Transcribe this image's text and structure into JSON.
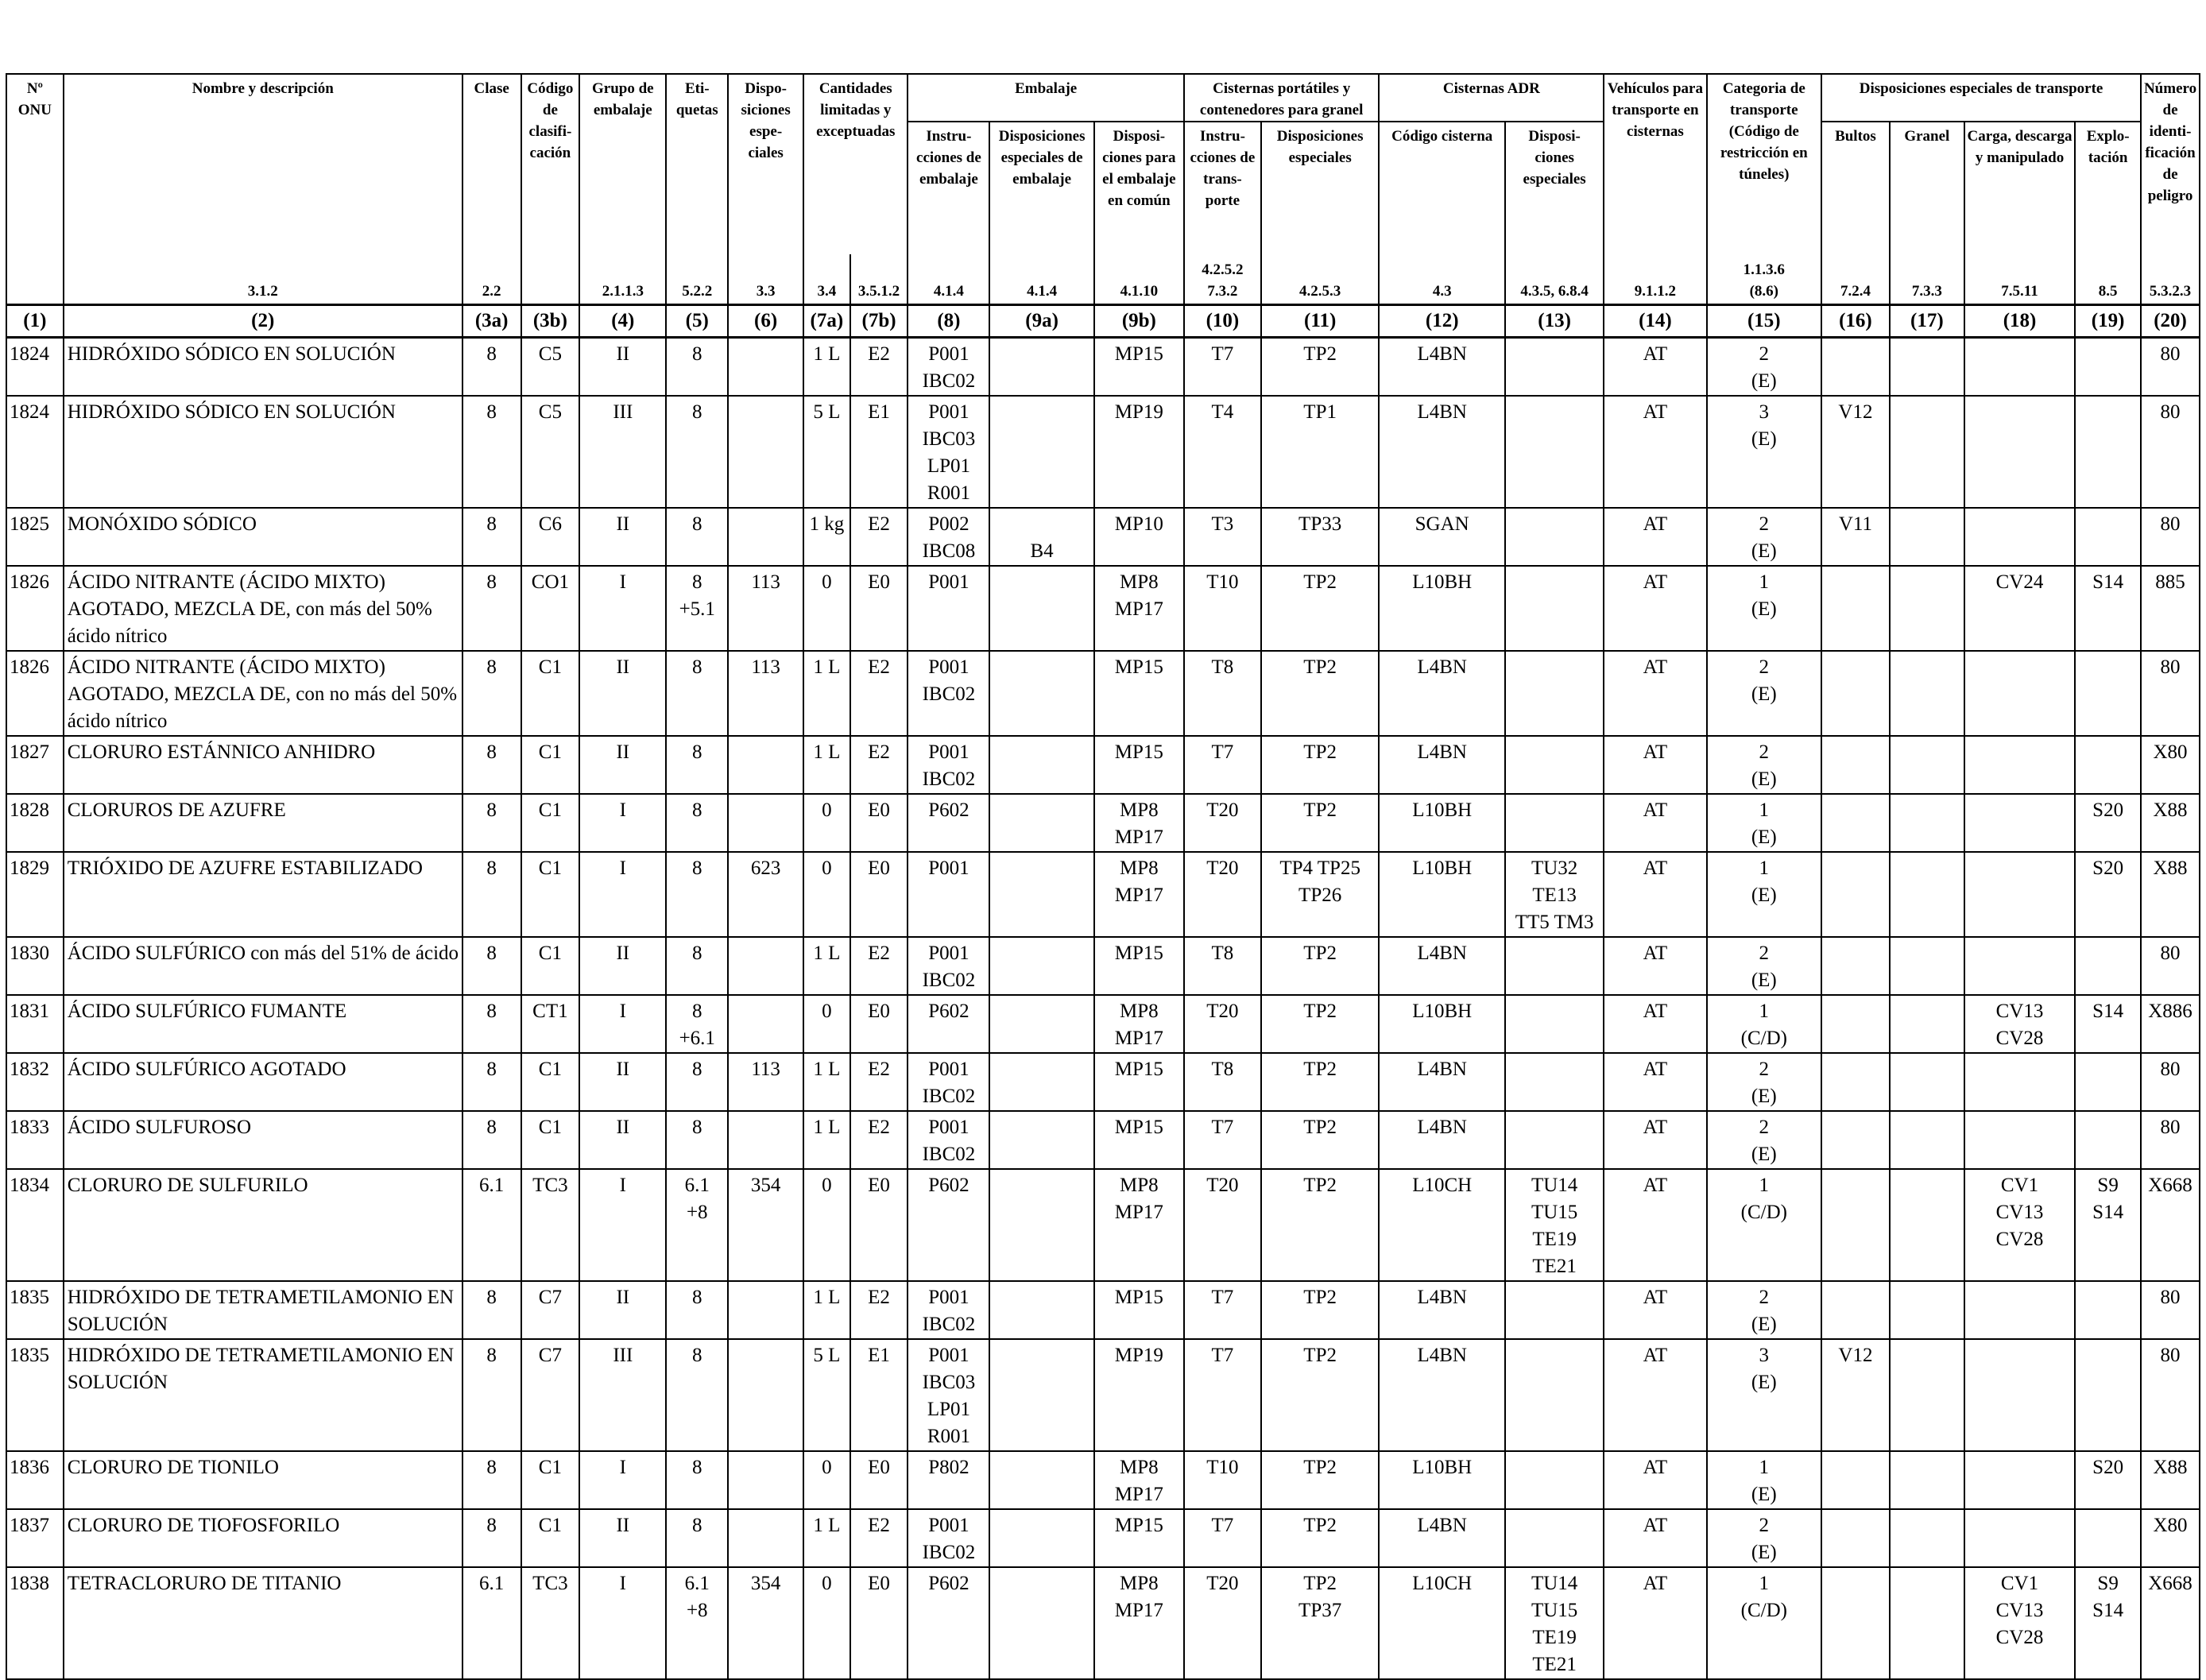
{
  "header": {
    "onu": "Nº ONU",
    "name": "Nombre y descripción",
    "clase": "Clase",
    "codigo": "Código de clasifi- cación",
    "grupo": "Grupo de embalaje",
    "etiquetas": "Eti- quetas",
    "disp_especiales": "Dispo- siciones espe- ciales",
    "cantidades": "Cantidades limitadas y exceptuadas",
    "embalaje": "Embalaje",
    "instr_embalaje": "Instru- cciones de embalaje",
    "disp_esp_embalaje": "Disposiciones especiales de embalaje",
    "disp_embalaje_comun": "Disposi- ciones para el embalaje en común",
    "cisternas_port": "Cisternas portátiles y contenedores para granel",
    "instr_transporte": "Instru- cciones de trans- porte",
    "disp_esp_cisternas": "Disposiciones especiales",
    "cisternas_adr": "Cisternas ADR",
    "codigo_cisterna": "Código cisterna",
    "disp_esp_adr": "Disposi- ciones especiales",
    "vehiculos": "Vehículos para transporte en cisternas",
    "categoria": "Categoria de transporte (Código de restricción en túneles)",
    "disp_esp_transporte": "Disposiciones especiales de transporte",
    "bultos": "Bultos",
    "granel": "Granel",
    "carga": "Carga, descarga y manipulado",
    "explotacion": "Explo- tación",
    "numero_peligro": "Número de identi- ficación de peligro"
  },
  "refs": [
    "",
    "3.1.2",
    "2.2",
    "",
    "2.1.1.3",
    "5.2.2",
    "3.3",
    "3.4",
    "3.5.1.2",
    "4.1.4",
    "4.1.4",
    "4.1.10",
    "4.2.5.2\n7.3.2",
    "4.2.5.3",
    "4.3",
    "4.3.5, 6.8.4",
    "9.1.1.2",
    "1.1.3.6\n(8.6)",
    "7.2.4",
    "7.3.3",
    "7.5.11",
    "8.5",
    "5.3.2.3"
  ],
  "colnums": [
    "(1)",
    "(2)",
    "(3a)",
    "(3b)",
    "(4)",
    "(5)",
    "(6)",
    "(7a)",
    "(7b)",
    "(8)",
    "(9a)",
    "(9b)",
    "(10)",
    "(11)",
    "(12)",
    "(13)",
    "(14)",
    "(15)",
    "(16)",
    "(17)",
    "(18)",
    "(19)",
    "(20)"
  ],
  "rows": [
    [
      "1824",
      "HIDRÓXIDO SÓDICO EN SOLUCIÓN",
      "8",
      "C5",
      "II",
      "8",
      "",
      "1 L",
      "E2",
      "P001\nIBC02",
      "",
      "MP15",
      "T7",
      "TP2",
      "L4BN",
      "",
      "AT",
      "2\n(E)",
      "",
      "",
      "",
      "",
      "80"
    ],
    [
      "1824",
      "HIDRÓXIDO SÓDICO EN SOLUCIÓN",
      "8",
      "C5",
      "III",
      "8",
      "",
      "5 L",
      "E1",
      "P001\nIBC03\nLP01\nR001",
      "",
      "MP19",
      "T4",
      "TP1",
      "L4BN",
      "",
      "AT",
      "3\n(E)",
      "V12",
      "",
      "",
      "",
      "80"
    ],
    [
      "1825",
      "MONÓXIDO SÓDICO",
      "8",
      "C6",
      "II",
      "8",
      "",
      "1 kg",
      "E2",
      "P002\nIBC08",
      "\nB4",
      "MP10",
      "T3",
      "TP33",
      "SGAN",
      "",
      "AT",
      "2\n(E)",
      "V11",
      "",
      "",
      "",
      "80"
    ],
    [
      "1826",
      "ÁCIDO NITRANTE (ÁCIDO MIXTO) AGOTADO, MEZCLA DE, con más del 50% ácido nítrico",
      "8",
      "CO1",
      "I",
      "8\n+5.1",
      "113",
      "0",
      "E0",
      "P001",
      "",
      "MP8\nMP17",
      "T10",
      "TP2",
      "L10BH",
      "",
      "AT",
      "1\n(E)",
      "",
      "",
      "CV24",
      "S14",
      "885"
    ],
    [
      "1826",
      "ÁCIDO NITRANTE (ÁCIDO MIXTO) AGOTADO, MEZCLA DE, con no más del 50% ácido nítrico",
      "8",
      "C1",
      "II",
      "8",
      "113",
      "1 L",
      "E2",
      "P001\nIBC02",
      "",
      "MP15",
      "T8",
      "TP2",
      "L4BN",
      "",
      "AT",
      "2\n(E)",
      "",
      "",
      "",
      "",
      "80"
    ],
    [
      "1827",
      "CLORURO ESTÁNNICO ANHIDRO",
      "8",
      "C1",
      "II",
      "8",
      "",
      "1 L",
      "E2",
      "P001\nIBC02",
      "",
      "MP15",
      "T7",
      "TP2",
      "L4BN",
      "",
      "AT",
      "2\n(E)",
      "",
      "",
      "",
      "",
      "X80"
    ],
    [
      "1828",
      "CLORUROS DE AZUFRE",
      "8",
      "C1",
      "I",
      "8",
      "",
      "0",
      "E0",
      "P602",
      "",
      "MP8\nMP17",
      "T20",
      "TP2",
      "L10BH",
      "",
      "AT",
      "1\n(E)",
      "",
      "",
      "",
      "S20",
      "X88"
    ],
    [
      "1829",
      "TRIÓXIDO DE AZUFRE ESTABILIZADO",
      "8",
      "C1",
      "I",
      "8",
      "623",
      "0",
      "E0",
      "P001",
      "",
      "MP8\nMP17",
      "T20",
      "TP4 TP25\nTP26",
      "L10BH",
      "TU32\nTE13\nTT5 TM3",
      "AT",
      "1\n(E)",
      "",
      "",
      "",
      "S20",
      "X88"
    ],
    [
      "1830",
      "ÁCIDO SULFÚRICO con más del 51% de ácido",
      "8",
      "C1",
      "II",
      "8",
      "",
      "1 L",
      "E2",
      "P001\nIBC02",
      "",
      "MP15",
      "T8",
      "TP2",
      "L4BN",
      "",
      "AT",
      "2\n(E)",
      "",
      "",
      "",
      "",
      "80"
    ],
    [
      "1831",
      "ÁCIDO SULFÚRICO FUMANTE",
      "8",
      "CT1",
      "I",
      "8\n+6.1",
      "",
      "0",
      "E0",
      "P602",
      "",
      "MP8\nMP17",
      "T20",
      "TP2",
      "L10BH",
      "",
      "AT",
      "1\n(C/D)",
      "",
      "",
      "CV13\nCV28",
      "S14",
      "X886"
    ],
    [
      "1832",
      "ÁCIDO SULFÚRICO AGOTADO",
      "8",
      "C1",
      "II",
      "8",
      "113",
      "1 L",
      "E2",
      "P001\nIBC02",
      "",
      "MP15",
      "T8",
      "TP2",
      "L4BN",
      "",
      "AT",
      "2\n(E)",
      "",
      "",
      "",
      "",
      "80"
    ],
    [
      "1833",
      "ÁCIDO SULFUROSO",
      "8",
      "C1",
      "II",
      "8",
      "",
      "1 L",
      "E2",
      "P001\nIBC02",
      "",
      "MP15",
      "T7",
      "TP2",
      "L4BN",
      "",
      "AT",
      "2\n(E)",
      "",
      "",
      "",
      "",
      "80"
    ],
    [
      "1834",
      "CLORURO DE SULFURILO",
      "6.1",
      "TC3",
      "I",
      "6.1\n+8",
      "354",
      "0",
      "E0",
      "P602",
      "",
      "MP8\nMP17",
      "T20",
      "TP2",
      "L10CH",
      "TU14\nTU15\nTE19\nTE21",
      "AT",
      "1\n(C/D)",
      "",
      "",
      "CV1\nCV13\nCV28",
      "S9\nS14",
      "X668"
    ],
    [
      "1835",
      "HIDRÓXIDO DE TETRAMETILAMONIO EN SOLUCIÓN",
      "8",
      "C7",
      "II",
      "8",
      "",
      "1 L",
      "E2",
      "P001\nIBC02",
      "",
      "MP15",
      "T7",
      "TP2",
      "L4BN",
      "",
      "AT",
      "2\n(E)",
      "",
      "",
      "",
      "",
      "80"
    ],
    [
      "1835",
      "HIDRÓXIDO DE TETRAMETILAMONIO EN SOLUCIÓN",
      "8",
      "C7",
      "III",
      "8",
      "",
      "5 L",
      "E1",
      "P001\nIBC03\nLP01\nR001",
      "",
      "MP19",
      "T7",
      "TP2",
      "L4BN",
      "",
      "AT",
      "3\n(E)",
      "V12",
      "",
      "",
      "",
      "80"
    ],
    [
      "1836",
      "CLORURO DE TIONILO",
      "8",
      "C1",
      "I",
      "8",
      "",
      "0",
      "E0",
      "P802",
      "",
      "MP8\nMP17",
      "T10",
      "TP2",
      "L10BH",
      "",
      "AT",
      "1\n(E)",
      "",
      "",
      "",
      "S20",
      "X88"
    ],
    [
      "1837",
      "CLORURO DE TIOFOSFORILO",
      "8",
      "C1",
      "II",
      "8",
      "",
      "1 L",
      "E2",
      "P001\nIBC02",
      "",
      "MP15",
      "T7",
      "TP2",
      "L4BN",
      "",
      "AT",
      "2\n(E)",
      "",
      "",
      "",
      "",
      "X80"
    ],
    [
      "1838",
      "TETRACLORURO DE TITANIO",
      "6.1",
      "TC3",
      "I",
      "6.1\n+8",
      "354",
      "0",
      "E0",
      "P602",
      "",
      "MP8\nMP17",
      "T20",
      "TP2\nTP37",
      "L10CH",
      "TU14\nTU15\nTE19\nTE21",
      "AT",
      "1\n(C/D)",
      "",
      "",
      "CV1\nCV13\nCV28",
      "S9\nS14",
      "X668"
    ]
  ]
}
